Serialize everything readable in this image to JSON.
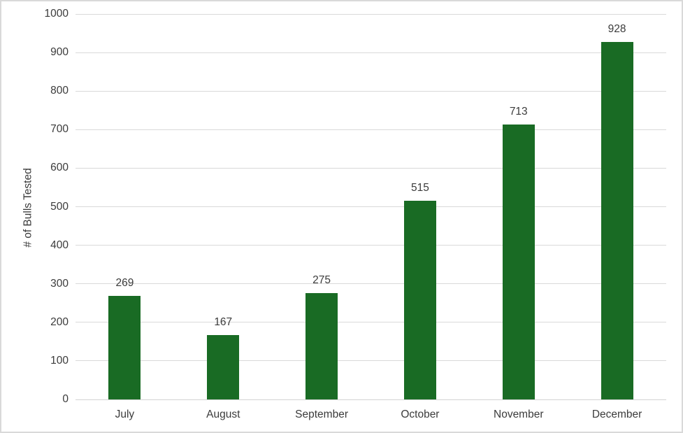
{
  "chart_data": {
    "type": "bar",
    "categories": [
      "July",
      "August",
      "September",
      "October",
      "November",
      "December"
    ],
    "values": [
      269,
      167,
      275,
      515,
      713,
      928
    ],
    "data_labels": [
      "269",
      "167",
      "275",
      "515",
      "713",
      "928"
    ],
    "title": "",
    "xlabel": "",
    "ylabel": "# of Bulls Tested",
    "ylim": [
      0,
      1000
    ],
    "ytick_step": 100,
    "ytick_labels": [
      "0",
      "100",
      "200",
      "300",
      "400",
      "500",
      "600",
      "700",
      "800",
      "900",
      "1000"
    ],
    "grid": true,
    "legend": false,
    "colors": {
      "bar_fill": "#196B24",
      "gridline": "#D9D9D9",
      "axis_line": "#D3D3D3",
      "text": "#3B3B3B",
      "border": "#D9D9D9",
      "background": "#FFFFFF"
    }
  }
}
